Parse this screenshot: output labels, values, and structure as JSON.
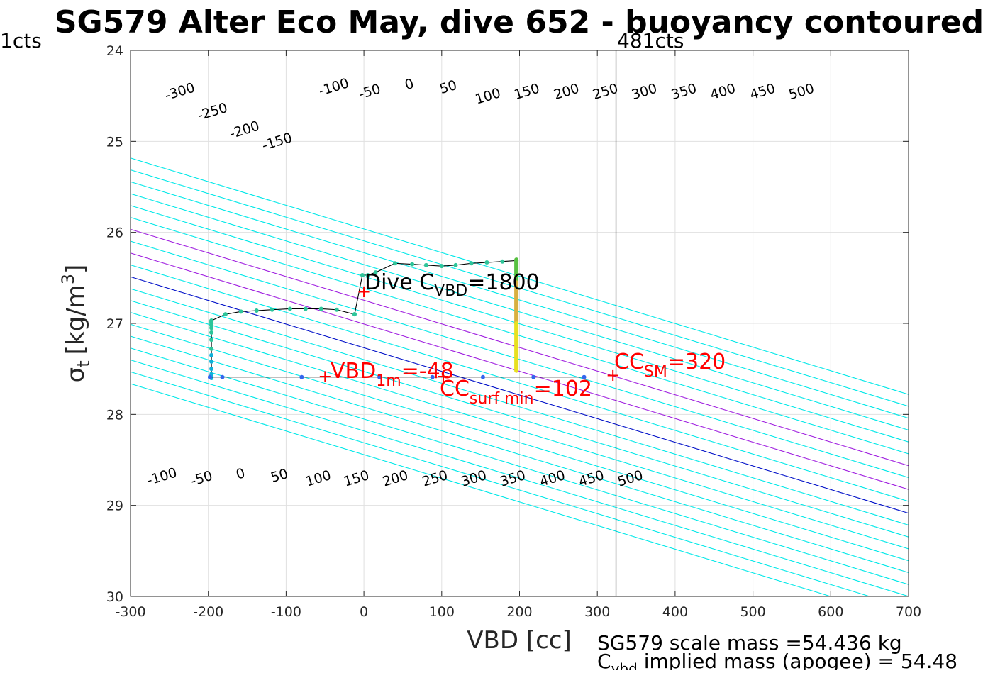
{
  "chart_data": {
    "type": "line",
    "title": "SG579 Alter Eco May, dive 652 - buoyancy contoured",
    "xlabel": "VBD [cc]",
    "ylabel_symbol": "σ",
    "ylabel_subscript": "t",
    "ylabel_unit_prefix": "[kg/m",
    "ylabel_unit_sup": "3",
    "ylabel_unit_suffix": "]",
    "xlim": [
      -300,
      700
    ],
    "ylim": [
      24,
      30
    ],
    "y_reversed": true,
    "xticks": [
      -300,
      -200,
      -100,
      0,
      100,
      200,
      300,
      400,
      500,
      600,
      700
    ],
    "yticks": [
      24,
      25,
      26,
      27,
      28,
      29,
      30
    ],
    "grid": true,
    "colors": {
      "contour_default": "#00e8e8",
      "contour_zero": "#0010c8",
      "contour_highlight": "#a020e0",
      "dive_path": "#000000",
      "annotation_red": "#ff0000",
      "pump_line": "#000000",
      "grid": "#e0e0e0"
    },
    "contours": {
      "levels": [
        -450,
        -400,
        -350,
        -300,
        -250,
        -200,
        -150,
        -100,
        -50,
        0,
        50,
        100,
        150,
        200,
        250,
        300,
        350,
        400,
        450,
        500
      ],
      "zero_level": 0,
      "highlight_levels": [
        100,
        200
      ],
      "top_labels": [
        {
          "text": "-300",
          "x": -235,
          "y": 24.5
        },
        {
          "text": "-250",
          "x": -193,
          "y": 24.72
        },
        {
          "text": "-200",
          "x": -152,
          "y": 24.92
        },
        {
          "text": "-150",
          "x": -110,
          "y": 25.05
        },
        {
          "text": "-100",
          "x": -37,
          "y": 24.45
        },
        {
          "text": "-50",
          "x": 9,
          "y": 24.5
        },
        {
          "text": "0",
          "x": 60,
          "y": 24.42
        },
        {
          "text": "50",
          "x": 110,
          "y": 24.45
        },
        {
          "text": "100",
          "x": 161,
          "y": 24.55
        },
        {
          "text": "150",
          "x": 211,
          "y": 24.5
        },
        {
          "text": "200",
          "x": 262,
          "y": 24.5
        },
        {
          "text": "250",
          "x": 312,
          "y": 24.5
        },
        {
          "text": "300",
          "x": 362,
          "y": 24.5
        },
        {
          "text": "350",
          "x": 413,
          "y": 24.5
        },
        {
          "text": "400",
          "x": 463,
          "y": 24.5
        },
        {
          "text": "450",
          "x": 514,
          "y": 24.5
        },
        {
          "text": "500",
          "x": 564,
          "y": 24.5
        }
      ],
      "bottom_labels": [
        {
          "text": "-100",
          "x": -258,
          "y": 28.73
        },
        {
          "text": "-50",
          "x": -207,
          "y": 28.75
        },
        {
          "text": "0",
          "x": -157,
          "y": 28.7
        },
        {
          "text": "50",
          "x": -107,
          "y": 28.72
        },
        {
          "text": "100",
          "x": -57,
          "y": 28.75
        },
        {
          "text": "150",
          "x": -8,
          "y": 28.75
        },
        {
          "text": "200",
          "x": 42,
          "y": 28.75
        },
        {
          "text": "250",
          "x": 93,
          "y": 28.75
        },
        {
          "text": "300",
          "x": 143,
          "y": 28.75
        },
        {
          "text": "350",
          "x": 193,
          "y": 28.75
        },
        {
          "text": "400",
          "x": 244,
          "y": 28.75
        },
        {
          "text": "450",
          "x": 294,
          "y": 28.75
        },
        {
          "text": "500",
          "x": 344,
          "y": 28.75
        }
      ]
    },
    "series": [
      {
        "x": [
          -196,
          -196,
          -196,
          -196,
          -196,
          -196,
          -196,
          -196,
          -196,
          -196,
          -196,
          -196,
          -196,
          -196,
          -196,
          -196,
          -178,
          -158,
          -138,
          -118,
          -95,
          -75,
          -55,
          -35,
          -12,
          -12,
          -2,
          5,
          15,
          40,
          62,
          80,
          100,
          118,
          138,
          158,
          178,
          196,
          196
        ],
        "y": [
          27.6,
          27.58,
          27.56,
          27.5,
          27.42,
          27.35,
          27.28,
          27.18,
          27.1,
          27.05,
          27.02,
          27.0,
          26.99,
          26.98,
          26.97,
          26.97,
          26.9,
          26.87,
          26.86,
          26.85,
          26.84,
          26.84,
          26.84,
          26.85,
          26.9,
          26.9,
          26.47,
          26.47,
          26.44,
          26.34,
          26.35,
          26.36,
          26.37,
          26.36,
          26.34,
          26.33,
          26.32,
          26.31,
          26.31
        ]
      },
      {
        "x": [
          -198,
          -182,
          -80,
          20,
          88,
          153,
          218,
          283
        ],
        "y": [
          27.59,
          27.59,
          27.59,
          27.59,
          27.59,
          27.59,
          27.59,
          27.59
        ]
      },
      {
        "x": [
          196,
          196
        ],
        "y": [
          26.3,
          26.55
        ]
      },
      {
        "x": [
          196,
          196
        ],
        "y": [
          26.55,
          27.0
        ]
      },
      {
        "x": [
          196,
          196
        ],
        "y": [
          27.0,
          27.52
        ]
      }
    ],
    "apogee_level": {
      "x": 324,
      "top_label": "481cts",
      "left_label": "1cts"
    },
    "markers": [
      {
        "x": 0,
        "y": 26.65
      },
      {
        "x": -50,
        "y": 27.58
      },
      {
        "x": 102,
        "y": 27.58
      },
      {
        "x": 320,
        "y": 27.57
      }
    ],
    "annotations": {
      "dive_c_vbd": {
        "prefix": "Dive C",
        "sub": "VBD",
        "suffix": "=1800"
      },
      "vbd_1m": {
        "prefix": "VBD",
        "sub": "1m",
        "suffix": "=-48"
      },
      "cc_surf_min": {
        "prefix": "CC",
        "sub": "surf min",
        "suffix": "=102"
      },
      "cc_sm": {
        "prefix": "CC",
        "sub": "SM",
        "suffix": "=320"
      }
    },
    "footer": {
      "scale_mass": "SG579 scale mass =54.436 kg",
      "implied_prefix": "C",
      "implied_sub": "vbd",
      "implied_suffix": " implied mass (apogee) = 54.48"
    }
  }
}
